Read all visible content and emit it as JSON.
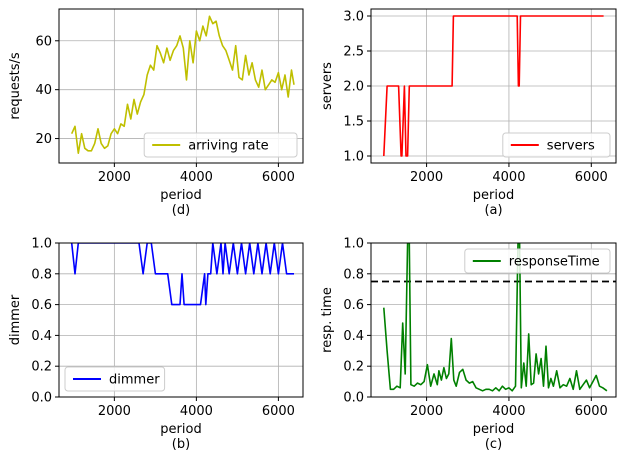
{
  "chart_data": [
    {
      "id": "d",
      "type": "line",
      "xlabel": "period",
      "caption": "(d)",
      "ylabel": "requests/s",
      "xlim": [
        650,
        6600
      ],
      "ylim": [
        10,
        73
      ],
      "xticks": [
        2000,
        4000,
        6000
      ],
      "yticks": [
        20,
        40,
        60
      ],
      "ytick_labels": [
        "20",
        "40",
        "60"
      ],
      "grid": true,
      "legend_position": "lower right",
      "series": [
        {
          "name": "arriving rate",
          "color": "#bfbf00",
          "x": [
            960,
            1040,
            1120,
            1200,
            1280,
            1360,
            1440,
            1520,
            1600,
            1680,
            1760,
            1840,
            1920,
            2000,
            2080,
            2160,
            2240,
            2320,
            2400,
            2480,
            2560,
            2640,
            2720,
            2800,
            2880,
            2960,
            3040,
            3120,
            3200,
            3280,
            3360,
            3440,
            3520,
            3600,
            3680,
            3760,
            3840,
            3920,
            4000,
            4080,
            4160,
            4240,
            4320,
            4400,
            4480,
            4560,
            4640,
            4720,
            4800,
            4880,
            4960,
            5040,
            5120,
            5200,
            5280,
            5360,
            5440,
            5520,
            5600,
            5680,
            5760,
            5840,
            5920,
            6000,
            6080,
            6160,
            6240,
            6320,
            6380
          ],
          "y": [
            22,
            25,
            14,
            22,
            16,
            15,
            15,
            18,
            24,
            18,
            16,
            17,
            22,
            24,
            22,
            26,
            25,
            34,
            28,
            36,
            30,
            35,
            38,
            46,
            50,
            48,
            58,
            55,
            51,
            57,
            52,
            56,
            58,
            62,
            57,
            44,
            60,
            51,
            64,
            60,
            66,
            62,
            70,
            67,
            68,
            62,
            58,
            56,
            52,
            48,
            58,
            45,
            44,
            54,
            46,
            51,
            44,
            41,
            48,
            40,
            42,
            44,
            43,
            47,
            40,
            46,
            37,
            48,
            42
          ]
        }
      ]
    },
    {
      "id": "a",
      "type": "line",
      "xlabel": "period",
      "caption": "(a)",
      "ylabel": "servers",
      "xlim": [
        650,
        6600
      ],
      "ylim": [
        0.9,
        3.1
      ],
      "xticks": [
        2000,
        4000,
        6000
      ],
      "yticks": [
        1.0,
        1.5,
        2.0,
        2.5,
        3.0
      ],
      "ytick_labels": [
        "1.0",
        "1.5",
        "2.0",
        "2.5",
        "3.0"
      ],
      "grid": true,
      "legend_position": "lower right",
      "series": [
        {
          "name": "servers",
          "color": "#ff0000",
          "x": [
            960,
            1040,
            1100,
            1320,
            1380,
            1400,
            1460,
            1500,
            1540,
            1580,
            1620,
            2620,
            2650,
            4200,
            4230,
            4250,
            4280,
            6300
          ],
          "y": [
            1,
            2,
            2,
            2,
            1,
            1,
            2,
            1,
            1,
            2,
            2,
            2,
            3,
            3,
            2,
            2,
            3,
            3
          ]
        }
      ]
    },
    {
      "id": "b",
      "type": "line",
      "xlabel": "period",
      "caption": "(b)",
      "ylabel": "dimmer",
      "xlim": [
        650,
        6600
      ],
      "ylim": [
        0.0,
        1.0
      ],
      "xticks": [
        2000,
        4000,
        6000
      ],
      "yticks": [
        0.0,
        0.2,
        0.4,
        0.6,
        0.8,
        1.0
      ],
      "ytick_labels": [
        "0.0",
        "0.2",
        "0.4",
        "0.6",
        "0.8",
        "1.0"
      ],
      "grid": true,
      "legend_position": "lower left",
      "series": [
        {
          "name": "dimmer",
          "color": "#0000ff",
          "x": [
            960,
            1040,
            1120,
            2600,
            2700,
            2800,
            2900,
            3000,
            3100,
            3200,
            3300,
            3400,
            3500,
            3600,
            3650,
            3700,
            3800,
            3900,
            4000,
            4100,
            4200,
            4230,
            4280,
            4350,
            4400,
            4500,
            4600,
            4650,
            4700,
            4800,
            4900,
            5000,
            5100,
            5200,
            5300,
            5400,
            5500,
            5600,
            5700,
            5800,
            5900,
            6000,
            6100,
            6200,
            6300,
            6380
          ],
          "y": [
            1.0,
            0.8,
            1.0,
            1.0,
            0.8,
            1.0,
            1.0,
            0.8,
            0.8,
            0.8,
            0.8,
            0.6,
            0.6,
            0.6,
            0.8,
            0.6,
            0.6,
            0.6,
            0.6,
            0.6,
            0.8,
            0.6,
            0.8,
            0.8,
            1.0,
            0.8,
            1.0,
            0.8,
            1.0,
            0.8,
            1.0,
            0.8,
            1.0,
            0.8,
            1.0,
            0.8,
            1.0,
            0.8,
            1.0,
            0.8,
            1.0,
            0.8,
            1.0,
            0.8,
            0.8,
            0.8
          ]
        }
      ]
    },
    {
      "id": "c",
      "type": "line",
      "xlabel": "period",
      "caption": "(c)",
      "ylabel": "resp. time",
      "xlim": [
        650,
        6600
      ],
      "ylim": [
        0.0,
        1.0
      ],
      "xticks": [
        2000,
        4000,
        6000
      ],
      "yticks": [
        0.0,
        0.2,
        0.4,
        0.6,
        0.8,
        1.0
      ],
      "ytick_labels": [
        "0.0",
        "0.2",
        "0.4",
        "0.6",
        "0.8",
        "1.0"
      ],
      "grid": true,
      "legend_position": "upper right",
      "threshold": 0.75,
      "series": [
        {
          "name": "responseTime",
          "color": "#008000",
          "x": [
            960,
            1040,
            1120,
            1200,
            1280,
            1360,
            1420,
            1480,
            1540,
            1580,
            1620,
            1700,
            1780,
            1860,
            1940,
            2020,
            2100,
            2180,
            2260,
            2300,
            2360,
            2420,
            2480,
            2540,
            2600,
            2660,
            2720,
            2800,
            2880,
            2960,
            3040,
            3120,
            3200,
            3280,
            3360,
            3440,
            3520,
            3600,
            3680,
            3760,
            3840,
            3920,
            4000,
            4080,
            4160,
            4220,
            4260,
            4300,
            4360,
            4420,
            4480,
            4540,
            4600,
            4660,
            4720,
            4780,
            4840,
            4900,
            4960,
            5020,
            5080,
            5160,
            5240,
            5320,
            5400,
            5480,
            5560,
            5640,
            5720,
            5800,
            5880,
            5960,
            6040,
            6120,
            6200,
            6280,
            6380
          ],
          "y": [
            0.58,
            0.3,
            0.05,
            0.05,
            0.07,
            0.06,
            0.48,
            0.15,
            1.0,
            1.0,
            0.08,
            0.07,
            0.09,
            0.08,
            0.1,
            0.21,
            0.07,
            0.15,
            0.08,
            0.17,
            0.11,
            0.19,
            0.12,
            0.15,
            0.38,
            0.11,
            0.07,
            0.16,
            0.18,
            0.11,
            0.09,
            0.1,
            0.06,
            0.05,
            0.04,
            0.05,
            0.05,
            0.04,
            0.06,
            0.04,
            0.07,
            0.05,
            0.06,
            0.04,
            0.07,
            1.0,
            1.0,
            0.06,
            0.22,
            0.07,
            0.41,
            0.08,
            0.09,
            0.28,
            0.15,
            0.25,
            0.07,
            0.33,
            0.06,
            0.12,
            0.07,
            0.17,
            0.06,
            0.08,
            0.07,
            0.12,
            0.05,
            0.17,
            0.05,
            0.08,
            0.11,
            0.06,
            0.1,
            0.14,
            0.07,
            0.06,
            0.04
          ]
        }
      ]
    }
  ]
}
